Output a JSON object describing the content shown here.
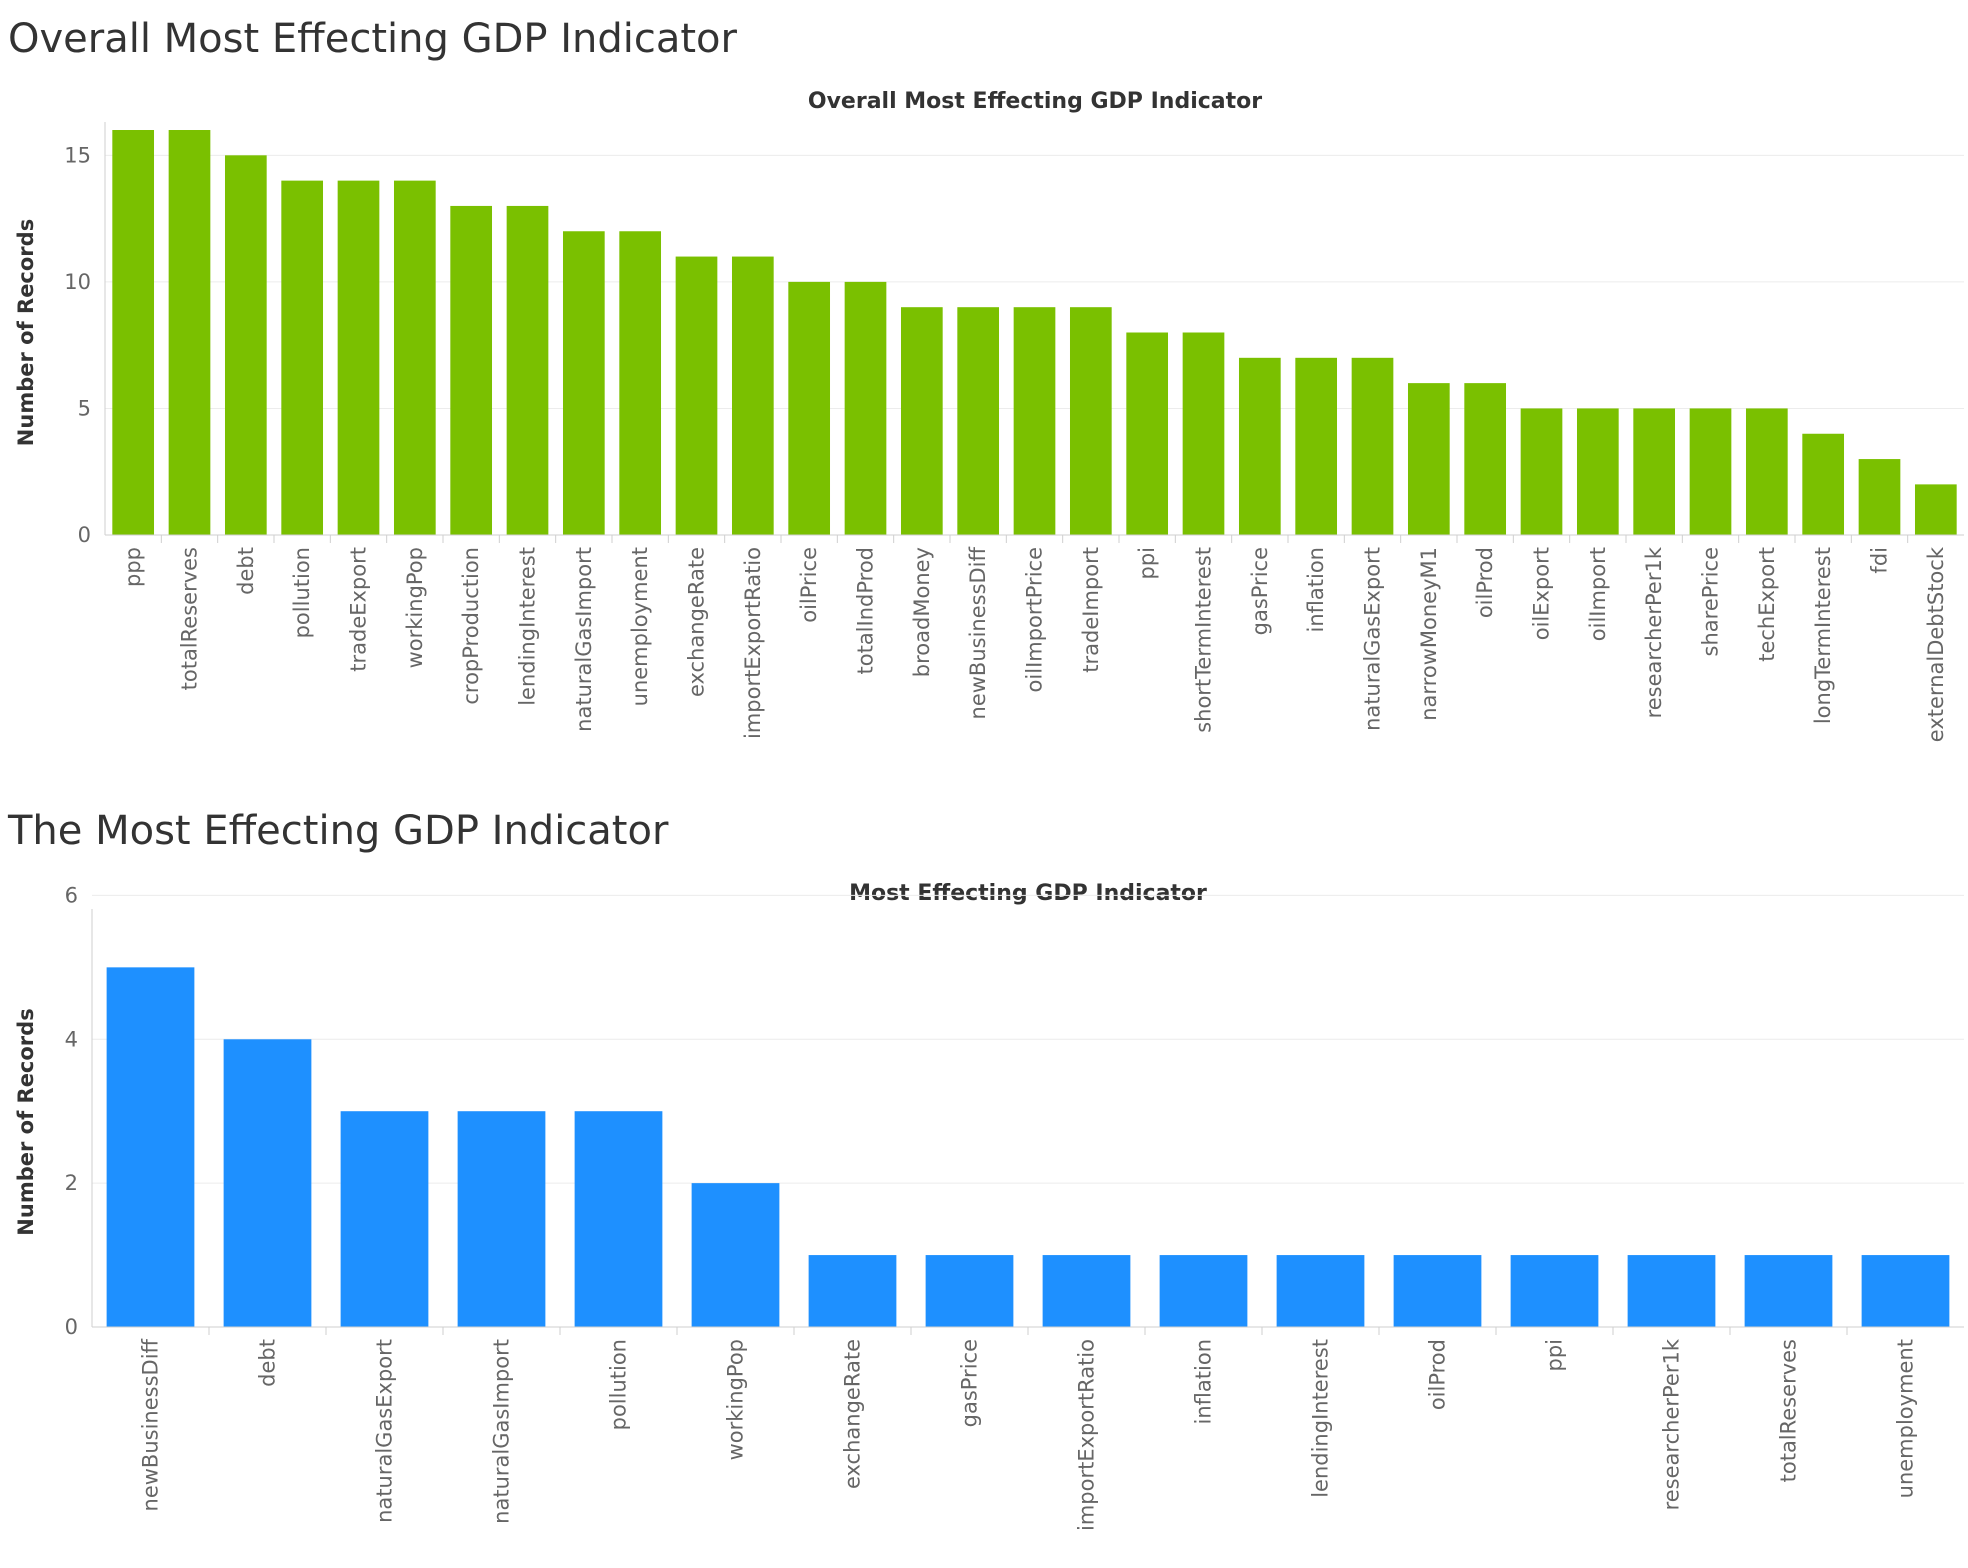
{
  "dashboard": {
    "title_1": "Overall Most Effecting GDP Indicator",
    "title_2": "The Most Effecting GDP Indicator"
  },
  "chart_data": [
    {
      "type": "bar",
      "title": "Overall Most Effecting GDP Indicator",
      "xlabel": "",
      "ylabel": "Number of Records",
      "ylim": [
        0,
        16
      ],
      "yticks": [
        0,
        5,
        10,
        15
      ],
      "grid": true,
      "color": "#7ac000",
      "categories": [
        "ppp",
        "totalReserves",
        "debt",
        "pollution",
        "tradeExport",
        "workingPop",
        "cropProduction",
        "lendingInterest",
        "naturalGasImport",
        "unemployment",
        "exchangeRate",
        "importExportRatio",
        "oilPrice",
        "totalIndProd",
        "broadMoney",
        "newBusinessDiff",
        "oilImportPrice",
        "tradeImport",
        "ppi",
        "shortTermInterest",
        "gasPrice",
        "inflation",
        "naturalGasExport",
        "narrowMoneyM1",
        "oilProd",
        "oilExport",
        "oilImport",
        "researcherPer1k",
        "sharePrice",
        "techExport",
        "longTermInterest",
        "fdi",
        "externalDebtStock"
      ],
      "values": [
        16,
        16,
        15,
        14,
        14,
        14,
        13,
        13,
        12,
        12,
        11,
        11,
        10,
        10,
        9,
        9,
        9,
        9,
        8,
        8,
        7,
        7,
        7,
        6,
        6,
        5,
        5,
        5,
        5,
        5,
        4,
        3,
        2
      ]
    },
    {
      "type": "bar",
      "title": "Most Effecting GDP Indicator",
      "xlabel": "",
      "ylabel": "Number of Records",
      "ylim": [
        0,
        5.7
      ],
      "yticks": [
        0,
        2,
        4,
        6
      ],
      "grid": true,
      "color": "#1e90ff",
      "categories": [
        "newBusinessDiff",
        "debt",
        "naturalGasExport",
        "naturalGasImport",
        "pollution",
        "workingPop",
        "exchangeRate",
        "gasPrice",
        "importExportRatio",
        "inflation",
        "lendingInterest",
        "oilProd",
        "ppi",
        "researcherPer1k",
        "totalReserves",
        "unemployment"
      ],
      "values": [
        5,
        4,
        3,
        3,
        3,
        2,
        1,
        1,
        1,
        1,
        1,
        1,
        1,
        1,
        1,
        1
      ]
    }
  ]
}
